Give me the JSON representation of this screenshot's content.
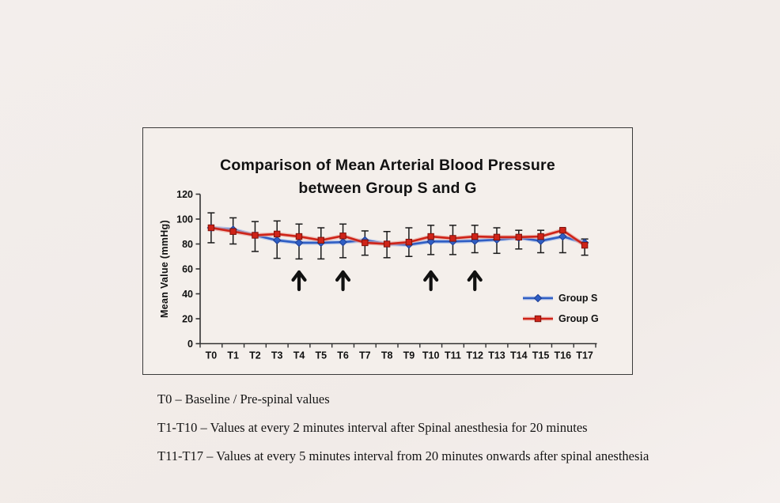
{
  "chart_data": {
    "type": "line",
    "title": "Comparison of Mean Arterial Blood Pressure",
    "title_line2": "between Group S and G",
    "ylabel": "Mean Value (mmHg)",
    "xlabel": "",
    "categories": [
      "T0",
      "T1",
      "T2",
      "T3",
      "T4",
      "T5",
      "T6",
      "T7",
      "T8",
      "T9",
      "T10",
      "T11",
      "T12",
      "T13",
      "T14",
      "T15",
      "T16",
      "T17"
    ],
    "ylim": [
      0,
      120
    ],
    "yticks": [
      0,
      20,
      40,
      60,
      80,
      100,
      120
    ],
    "grid": false,
    "legend_position": "inside-right-middle",
    "series": [
      {
        "name": "Group S",
        "color": "#2f5ec4",
        "halo_color": "#9bb3e8",
        "marker": "diamond",
        "marker_edge": "#1d3d94",
        "values": [
          93,
          91.5,
          87,
          83,
          81,
          81,
          81.5,
          83,
          80,
          79.5,
          82,
          82,
          82.5,
          83.5,
          85,
          82.5,
          86,
          81
        ]
      },
      {
        "name": "Group G",
        "color": "#cf2318",
        "halo_color": "#eaa39a",
        "marker": "square",
        "marker_edge": "#7e120b",
        "values": [
          93,
          90,
          87,
          88,
          86,
          83,
          86.5,
          81,
          80,
          81.5,
          86,
          84.5,
          86,
          85.5,
          85.5,
          86,
          91,
          79
        ]
      }
    ],
    "error_bars": {
      "color": "#1a1a1a",
      "high": [
        105,
        101,
        98,
        98.5,
        96,
        93,
        96,
        90.5,
        90,
        93,
        95,
        95,
        95,
        93,
        91,
        91,
        92,
        84
      ],
      "low": [
        81,
        80,
        74,
        68.5,
        68,
        68,
        69,
        71,
        69,
        70,
        71.5,
        71.5,
        73,
        72.5,
        76,
        73,
        73,
        71
      ]
    },
    "annotations": {
      "arrow_symbol": "up-arrow",
      "arrow_color": "#111111",
      "arrow_categories": [
        "T4",
        "T6",
        "T10",
        "T12"
      ]
    },
    "axis_color": "#333333",
    "tick_label_color": "#111111"
  },
  "notes": {
    "lines": [
      "T0 – Baseline / Pre-spinal values",
      "T1-T10 – Values at every 2 minutes interval after Spinal anesthesia for 20 minutes",
      "T11-T17 – Values at every 5 minutes interval from 20 minutes onwards after spinal anesthesia"
    ]
  }
}
